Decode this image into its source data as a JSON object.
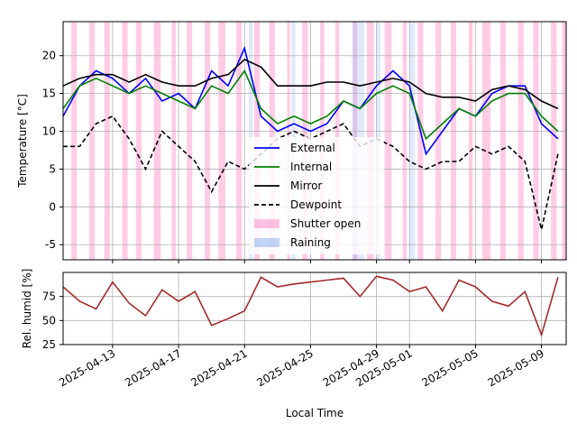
{
  "chart_data": [
    {
      "type": "line",
      "ylabel": "Temperature [°C]",
      "ylim": [
        -7,
        24.5
      ],
      "yticks": [
        -5,
        0,
        5,
        10,
        15,
        20
      ],
      "xlim": [
        "2025-04-10",
        "2025-05-10T12:00"
      ],
      "grid": true,
      "legend_position": "center",
      "series": [
        {
          "name": "External",
          "color": "#0000ff",
          "style": "solid",
          "x": [
            "2025-04-10",
            "2025-04-11",
            "2025-04-12",
            "2025-04-13",
            "2025-04-14",
            "2025-04-15",
            "2025-04-16",
            "2025-04-17",
            "2025-04-18",
            "2025-04-19",
            "2025-04-20",
            "2025-04-21",
            "2025-04-22",
            "2025-04-23",
            "2025-04-24",
            "2025-04-25",
            "2025-04-26",
            "2025-04-27",
            "2025-04-28",
            "2025-04-29",
            "2025-04-30",
            "2025-05-01",
            "2025-05-02",
            "2025-05-03",
            "2025-05-04",
            "2025-05-05",
            "2025-05-06",
            "2025-05-07",
            "2025-05-08",
            "2025-05-09",
            "2025-05-10"
          ],
          "y": [
            12,
            16,
            18,
            17,
            15,
            17,
            14,
            15,
            13,
            18,
            16,
            21,
            12,
            10,
            11,
            10,
            11,
            14,
            13,
            16,
            18,
            16,
            7,
            10,
            13,
            12,
            15,
            16,
            16,
            11,
            9
          ]
        },
        {
          "name": "Internal",
          "color": "#008000",
          "style": "solid",
          "x": [
            "2025-04-10",
            "2025-04-11",
            "2025-04-12",
            "2025-04-13",
            "2025-04-14",
            "2025-04-15",
            "2025-04-16",
            "2025-04-17",
            "2025-04-18",
            "2025-04-19",
            "2025-04-20",
            "2025-04-21",
            "2025-04-22",
            "2025-04-23",
            "2025-04-24",
            "2025-04-25",
            "2025-04-26",
            "2025-04-27",
            "2025-04-28",
            "2025-04-29",
            "2025-04-30",
            "2025-05-01",
            "2025-05-02",
            "2025-05-03",
            "2025-05-04",
            "2025-05-05",
            "2025-05-06",
            "2025-05-07",
            "2025-05-08",
            "2025-05-09",
            "2025-05-10"
          ],
          "y": [
            13,
            16,
            17,
            16,
            15,
            16,
            15,
            14,
            13,
            16,
            15,
            18,
            13,
            11,
            12,
            11,
            12,
            14,
            13,
            15,
            16,
            15,
            9,
            11,
            13,
            12,
            14,
            15,
            15,
            12,
            10
          ]
        },
        {
          "name": "Mirror",
          "color": "#000000",
          "style": "solid",
          "x": [
            "2025-04-10",
            "2025-04-11",
            "2025-04-12",
            "2025-04-13",
            "2025-04-14",
            "2025-04-15",
            "2025-04-16",
            "2025-04-17",
            "2025-04-18",
            "2025-04-19",
            "2025-04-20",
            "2025-04-21",
            "2025-04-22",
            "2025-04-23",
            "2025-04-24",
            "2025-04-25",
            "2025-04-26",
            "2025-04-27",
            "2025-04-28",
            "2025-04-29",
            "2025-04-30",
            "2025-05-01",
            "2025-05-02",
            "2025-05-03",
            "2025-05-04",
            "2025-05-05",
            "2025-05-06",
            "2025-05-07",
            "2025-05-08",
            "2025-05-09",
            "2025-05-10"
          ],
          "y": [
            16,
            17,
            17.5,
            17.5,
            16.5,
            17.5,
            16.5,
            16,
            16,
            17,
            17.5,
            19.5,
            18.5,
            16,
            16,
            16,
            16.5,
            16.5,
            16,
            16.5,
            17,
            16.5,
            15,
            14.5,
            14.5,
            14,
            15.5,
            16,
            15.5,
            14,
            13
          ]
        },
        {
          "name": "Dewpoint",
          "color": "#000000",
          "style": "dashed",
          "x": [
            "2025-04-10",
            "2025-04-11",
            "2025-04-12",
            "2025-04-13",
            "2025-04-14",
            "2025-04-15",
            "2025-04-16",
            "2025-04-17",
            "2025-04-18",
            "2025-04-19",
            "2025-04-20",
            "2025-04-21",
            "2025-04-22",
            "2025-04-23",
            "2025-04-24",
            "2025-04-25",
            "2025-04-26",
            "2025-04-27",
            "2025-04-28",
            "2025-04-29",
            "2025-04-30",
            "2025-05-01",
            "2025-05-02",
            "2025-05-03",
            "2025-05-04",
            "2025-05-05",
            "2025-05-06",
            "2025-05-07",
            "2025-05-08",
            "2025-05-09",
            "2025-05-10"
          ],
          "y": [
            8,
            8,
            11,
            12,
            9,
            5,
            10,
            8,
            6,
            2,
            6,
            5,
            7,
            9,
            10,
            9,
            10,
            11,
            8,
            9,
            8,
            6,
            5,
            6,
            6,
            8,
            7,
            8,
            6,
            -3,
            7
          ]
        }
      ],
      "bands": [
        {
          "name": "Shutter open",
          "color": "#ff69b4",
          "opacity": 0.35,
          "ranges": [
            [
              "2025-04-10T12:00",
              "2025-04-10T20:00"
            ],
            [
              "2025-04-11T14:00",
              "2025-04-11T22:00"
            ],
            [
              "2025-04-12T12:00",
              "2025-04-12T20:00"
            ],
            [
              "2025-04-13T14:00",
              "2025-04-13T22:00"
            ],
            [
              "2025-04-14T10:00",
              "2025-04-14T18:00"
            ],
            [
              "2025-04-15T12:00",
              "2025-04-15T22:00"
            ],
            [
              "2025-04-16T14:00",
              "2025-04-16T20:00"
            ],
            [
              "2025-04-17T12:00",
              "2025-04-17T20:00"
            ],
            [
              "2025-04-18T14:00",
              "2025-04-18T22:00"
            ],
            [
              "2025-04-19T10:00",
              "2025-04-19T20:00"
            ],
            [
              "2025-04-20T12:00",
              "2025-04-20T20:00"
            ],
            [
              "2025-04-21T14:00",
              "2025-04-21T22:00"
            ],
            [
              "2025-04-22T12:00",
              "2025-04-22T20:00"
            ],
            [
              "2025-04-23T14:00",
              "2025-04-23T18:00"
            ],
            [
              "2025-04-24T12:00",
              "2025-04-24T20:00"
            ],
            [
              "2025-04-25T14:00",
              "2025-04-25T20:00"
            ],
            [
              "2025-04-26T12:00",
              "2025-04-26T18:00"
            ],
            [
              "2025-04-27T14:00",
              "2025-04-27T20:00"
            ],
            [
              "2025-04-28T10:00",
              "2025-04-28T20:00"
            ],
            [
              "2025-04-29T12:00",
              "2025-04-29T22:00"
            ],
            [
              "2025-04-30T14:00",
              "2025-04-30T20:00"
            ],
            [
              "2025-05-01T12:00",
              "2025-05-01T20:00"
            ],
            [
              "2025-05-02T14:00",
              "2025-05-02T22:00"
            ],
            [
              "2025-05-03T12:00",
              "2025-05-03T20:00"
            ],
            [
              "2025-05-04T14:00",
              "2025-05-04T20:00"
            ],
            [
              "2025-05-05T10:00",
              "2025-05-05T22:00"
            ],
            [
              "2025-05-06T12:00",
              "2025-05-06T20:00"
            ],
            [
              "2025-05-07T14:00",
              "2025-05-07T22:00"
            ],
            [
              "2025-05-08T12:00",
              "2025-05-08T20:00"
            ],
            [
              "2025-05-09T14:00",
              "2025-05-09T22:00"
            ],
            [
              "2025-05-10T06:00",
              "2025-05-10T12:00"
            ]
          ]
        },
        {
          "name": "Raining",
          "color": "#6495ed",
          "opacity": 0.2,
          "ranges": [
            [
              "2025-04-21T06:00",
              "2025-04-21T12:00"
            ],
            [
              "2025-04-23T20:00",
              "2025-04-24T02:00"
            ],
            [
              "2025-04-27T12:00",
              "2025-04-28T06:00"
            ],
            [
              "2025-04-29T00:00",
              "2025-04-29T06:00"
            ],
            [
              "2025-05-01T00:00",
              "2025-05-01T08:00"
            ]
          ]
        }
      ]
    },
    {
      "type": "line",
      "xlabel": "Local Time",
      "ylabel": "Rel. humid [%]",
      "ylabel_color": "#a52a2a",
      "ylim": [
        25,
        100
      ],
      "yticks": [
        25,
        50,
        75
      ],
      "xticks": [
        "2025-04-13",
        "2025-04-17",
        "2025-04-21",
        "2025-04-25",
        "2025-04-29",
        "2025-05-01",
        "2025-05-05",
        "2025-05-09"
      ],
      "grid": true,
      "series": [
        {
          "color": "#a52a2a",
          "x": [
            "2025-04-10",
            "2025-04-11",
            "2025-04-12",
            "2025-04-13",
            "2025-04-14",
            "2025-04-15",
            "2025-04-16",
            "2025-04-17",
            "2025-04-18",
            "2025-04-19",
            "2025-04-20",
            "2025-04-21",
            "2025-04-22",
            "2025-04-23",
            "2025-04-24",
            "2025-04-25",
            "2025-04-26",
            "2025-04-27",
            "2025-04-28",
            "2025-04-29",
            "2025-04-30",
            "2025-05-01",
            "2025-05-02",
            "2025-05-03",
            "2025-05-04",
            "2025-05-05",
            "2025-05-06",
            "2025-05-07",
            "2025-05-08",
            "2025-05-09",
            "2025-05-10"
          ],
          "y": [
            85,
            70,
            62,
            90,
            68,
            55,
            82,
            70,
            80,
            45,
            52,
            60,
            95,
            85,
            88,
            90,
            92,
            94,
            75,
            96,
            92,
            80,
            85,
            60,
            92,
            85,
            70,
            65,
            80,
            35,
            95
          ]
        }
      ]
    }
  ],
  "legend_items": [
    {
      "label": "External",
      "color": "#0000ff",
      "kind": "line"
    },
    {
      "label": "Internal",
      "color": "#008000",
      "kind": "line"
    },
    {
      "label": "Mirror",
      "color": "#000000",
      "kind": "line"
    },
    {
      "label": "Dewpoint",
      "color": "#000000",
      "kind": "dashed"
    },
    {
      "label": "Shutter open",
      "color": "#ff69b4",
      "kind": "patch"
    },
    {
      "label": "Raining",
      "color": "#6495ed",
      "kind": "patch"
    }
  ]
}
